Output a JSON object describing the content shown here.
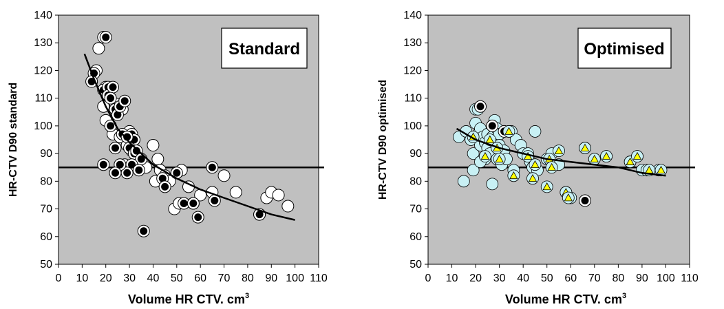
{
  "chart_data": [
    {
      "type": "scatter",
      "label_box": "Standard",
      "xlabel": "Volume HR CTV. cm",
      "xlabel_sup": "3",
      "ylabel": "HR-CTV D90 standard",
      "xlim": [
        0,
        110
      ],
      "ylim": [
        50,
        140
      ],
      "xticks": [
        "0",
        "10",
        "20",
        "30",
        "40",
        "50",
        "60",
        "70",
        "80",
        "90",
        "100",
        "110"
      ],
      "yticks": [
        "50",
        "60",
        "70",
        "80",
        "90",
        "100",
        "110",
        "120",
        "130",
        "140"
      ],
      "reference_line_y": 85,
      "colors": {
        "plot_bg": "#c0c0c0",
        "open_marker": "#ffffff",
        "filled_marker": "#000000",
        "line": "#000000"
      },
      "fit_curve": {
        "x": [
          11,
          15,
          20,
          25,
          30,
          35,
          40,
          50,
          60,
          70,
          80,
          90,
          100
        ],
        "y": [
          126,
          117,
          107,
          99,
          94,
          90,
          86,
          81,
          77,
          74,
          71,
          68,
          66
        ]
      },
      "series": [
        {
          "marker": "open-circle",
          "points": [
            [
              17,
              128
            ],
            [
              16,
              120
            ],
            [
              19,
              132
            ],
            [
              20,
              114
            ],
            [
              19,
              107
            ],
            [
              20,
              102
            ],
            [
              24,
              108
            ],
            [
              25,
              105
            ],
            [
              27,
              106
            ],
            [
              23,
              97
            ],
            [
              26,
              96
            ],
            [
              29,
              93
            ],
            [
              30,
              98
            ],
            [
              31,
              91
            ],
            [
              33,
              88
            ],
            [
              35,
              86
            ],
            [
              37,
              85
            ],
            [
              40,
              93
            ],
            [
              42,
              88
            ],
            [
              41,
              80
            ],
            [
              43,
              84
            ],
            [
              45,
              82
            ],
            [
              47,
              80
            ],
            [
              50,
              83
            ],
            [
              52,
              84
            ],
            [
              49,
              70
            ],
            [
              51,
              72
            ],
            [
              55,
              78
            ],
            [
              57,
              72
            ],
            [
              60,
              75
            ],
            [
              65,
              76
            ],
            [
              70,
              82
            ],
            [
              75,
              76
            ],
            [
              85,
              68
            ],
            [
              88,
              74
            ],
            [
              90,
              76
            ],
            [
              93,
              75
            ],
            [
              97,
              71
            ],
            [
              24,
              92
            ],
            [
              28,
              86
            ],
            [
              30,
              85
            ],
            [
              33,
              87
            ]
          ]
        },
        {
          "marker": "filled-circle",
          "points": [
            [
              15,
              119
            ],
            [
              20,
              132
            ],
            [
              14,
              116
            ],
            [
              19,
              113
            ],
            [
              21,
              114
            ],
            [
              21,
              111
            ],
            [
              23,
              114
            ],
            [
              22,
              110
            ],
            [
              24,
              106
            ],
            [
              25,
              104
            ],
            [
              26,
              107
            ],
            [
              28,
              109
            ],
            [
              22,
              100
            ],
            [
              27,
              97
            ],
            [
              31,
              97
            ],
            [
              32,
              95
            ],
            [
              29,
              96
            ],
            [
              30,
              92
            ],
            [
              32,
              90
            ],
            [
              33,
              91
            ],
            [
              35,
              88
            ],
            [
              31,
              86
            ],
            [
              29,
              83
            ],
            [
              26,
              86
            ],
            [
              24,
              83
            ],
            [
              19,
              86
            ],
            [
              34,
              84
            ],
            [
              44,
              81
            ],
            [
              45,
              78
            ],
            [
              50,
              83
            ],
            [
              53,
              72
            ],
            [
              57,
              72
            ],
            [
              59,
              67
            ],
            [
              65,
              85
            ],
            [
              66,
              73
            ],
            [
              85,
              68
            ],
            [
              36,
              62
            ],
            [
              24,
              92
            ]
          ]
        }
      ]
    },
    {
      "type": "scatter",
      "label_box": "Optimised",
      "xlabel": "Volume HR CTV. cm",
      "xlabel_sup": "3",
      "ylabel": "HR-CTV D90 optimised",
      "xlim": [
        0,
        110
      ],
      "ylim": [
        50,
        140
      ],
      "xticks": [
        "0",
        "10",
        "20",
        "30",
        "40",
        "50",
        "60",
        "70",
        "80",
        "90",
        "100",
        "110"
      ],
      "yticks": [
        "50",
        "60",
        "70",
        "80",
        "90",
        "100",
        "110",
        "120",
        "130",
        "140"
      ],
      "reference_line_y": 85,
      "colors": {
        "plot_bg": "#c0c0c0",
        "light_marker": "#c8f0f4",
        "filled_marker": "#000000",
        "triangle": "#ffff00",
        "line": "#000000"
      },
      "fit_curve": {
        "x": [
          12,
          20,
          30,
          40,
          50,
          60,
          70,
          80,
          90,
          100
        ],
        "y": [
          99,
          95,
          92,
          90,
          88,
          87,
          86,
          85,
          83,
          82
        ]
      },
      "series": [
        {
          "marker": "light-circle",
          "points": [
            [
              13,
              96
            ],
            [
              15,
              80
            ],
            [
              16,
              98
            ],
            [
              18,
              95
            ],
            [
              19,
              90
            ],
            [
              20,
              101
            ],
            [
              20,
              106
            ],
            [
              21,
              97
            ],
            [
              22,
              99
            ],
            [
              22,
              93
            ],
            [
              23,
              96
            ],
            [
              24,
              94
            ],
            [
              24,
              88
            ],
            [
              25,
              92
            ],
            [
              25,
              97
            ],
            [
              26,
              90
            ],
            [
              27,
              96
            ],
            [
              27,
              79
            ],
            [
              28,
              102
            ],
            [
              28,
              94
            ],
            [
              29,
              99
            ],
            [
              29,
              88
            ],
            [
              30,
              97
            ],
            [
              30,
              93
            ],
            [
              31,
              86
            ],
            [
              32,
              91
            ],
            [
              33,
              88
            ],
            [
              34,
              98
            ],
            [
              35,
              98
            ],
            [
              37,
              95
            ],
            [
              36,
              84
            ],
            [
              39,
              93
            ],
            [
              40,
              90
            ],
            [
              42,
              90
            ],
            [
              43,
              87
            ],
            [
              44,
              85
            ],
            [
              45,
              98
            ],
            [
              46,
              84
            ],
            [
              50,
              88
            ],
            [
              52,
              90
            ],
            [
              55,
              86
            ],
            [
              58,
              76
            ],
            [
              60,
              74
            ],
            [
              66,
              92
            ],
            [
              70,
              88
            ],
            [
              75,
              89
            ],
            [
              85,
              87
            ],
            [
              88,
              89
            ],
            [
              90,
              84
            ],
            [
              92,
              84
            ],
            [
              97,
              84
            ],
            [
              21,
              106
            ],
            [
              19,
              84
            ],
            [
              22,
              87
            ]
          ]
        },
        {
          "marker": "filled-circle",
          "points": [
            [
              22,
              107
            ],
            [
              27,
              100
            ],
            [
              32,
              98
            ],
            [
              66,
              73
            ]
          ]
        },
        {
          "marker": "yellow-triangle",
          "points": [
            [
              19,
              96
            ],
            [
              24,
              89
            ],
            [
              26,
              95
            ],
            [
              29,
              92
            ],
            [
              30,
              88
            ],
            [
              34,
              98
            ],
            [
              36,
              82
            ],
            [
              42,
              89
            ],
            [
              44,
              81
            ],
            [
              45,
              86
            ],
            [
              50,
              78
            ],
            [
              51,
              88
            ],
            [
              52,
              85
            ],
            [
              55,
              91
            ],
            [
              58,
              76
            ],
            [
              59,
              74
            ],
            [
              66,
              92
            ],
            [
              70,
              88
            ],
            [
              75,
              89
            ],
            [
              85,
              87
            ],
            [
              88,
              89
            ],
            [
              93,
              84
            ],
            [
              98,
              84
            ]
          ]
        }
      ]
    }
  ]
}
